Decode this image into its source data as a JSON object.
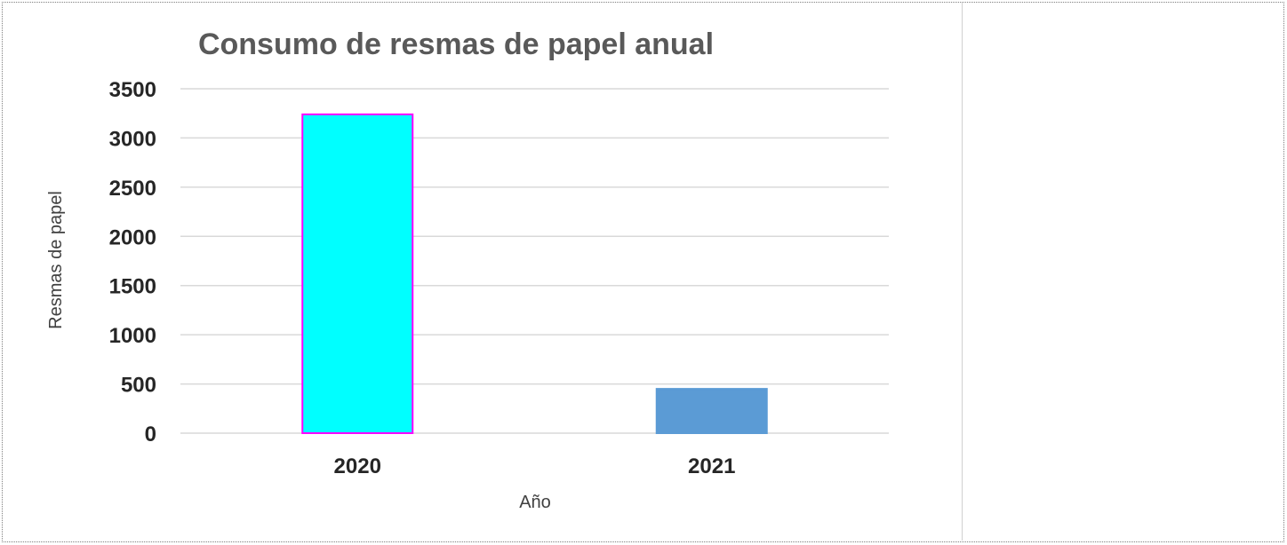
{
  "chart_data": {
    "type": "bar",
    "title": "Consumo de resmas de papel  anual",
    "xlabel": "Año",
    "ylabel": "Resmas de papel",
    "categories": [
      "2020",
      "2021"
    ],
    "values": [
      3240,
      450
    ],
    "ylim": [
      0,
      3500
    ],
    "yticks": [
      "0",
      "500",
      "1000",
      "1500",
      "2000",
      "2500",
      "3000",
      "3500"
    ],
    "grid": true,
    "bar_colors": [
      "#00ffff",
      "#5b9bd5"
    ],
    "bar_outlines": [
      "#ff00ff",
      "#5b9bd5"
    ]
  }
}
